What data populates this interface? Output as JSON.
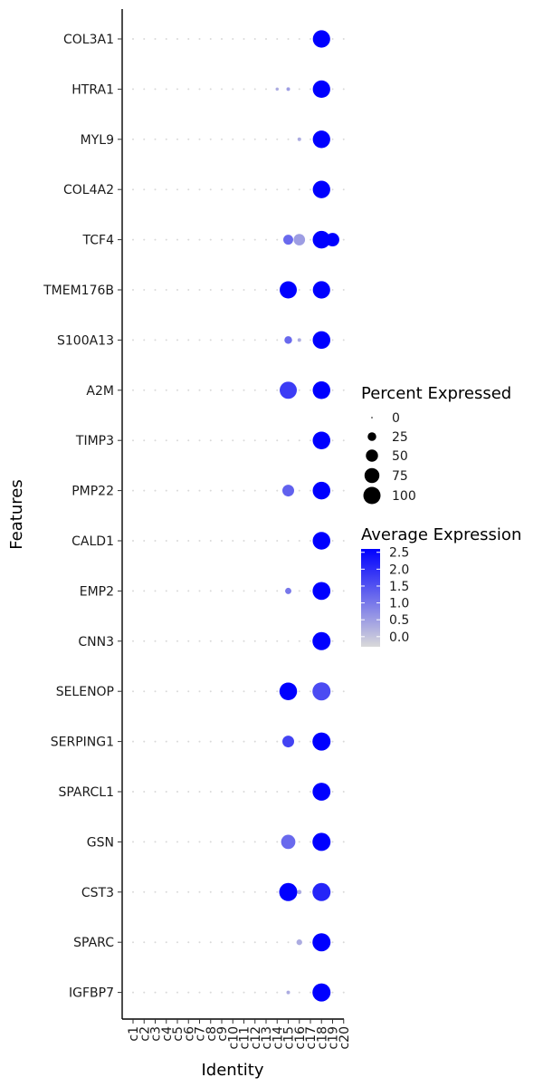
{
  "chart_data": {
    "type": "dotplot",
    "xlabel": "Identity",
    "ylabel": "Features",
    "categories": [
      "c1",
      "c2",
      "c3",
      "c4",
      "c5",
      "c6",
      "c7",
      "c8",
      "c9",
      "c10",
      "c11",
      "c12",
      "c13",
      "c14",
      "c15",
      "c16",
      "c17",
      "c18",
      "c19",
      "c20"
    ],
    "features": [
      "COL3A1",
      "HTRA1",
      "MYL9",
      "COL4A2",
      "TCF4",
      "TMEM176B",
      "S100A13",
      "A2M",
      "TIMP3",
      "PMP22",
      "CALD1",
      "EMP2",
      "CNN3",
      "SELENOP",
      "SERPING1",
      "SPARCL1",
      "GSN",
      "CST3",
      "SPARC",
      "IGFBP7"
    ],
    "size_legend": {
      "title": "Percent Expressed",
      "values": [
        0,
        25,
        50,
        75,
        100
      ]
    },
    "color_legend": {
      "title": "Average Expression",
      "ticks": [
        0.0,
        0.5,
        1.0,
        1.5,
        2.0,
        2.5
      ],
      "tick_labels": [
        "0.0",
        "0.5",
        "1.0",
        "1.5",
        "2.0",
        "2.5"
      ],
      "low_color": "#d9d9d9",
      "high_color": "#0000ff",
      "range": [
        -0.3,
        2.6
      ]
    },
    "default_cell": {
      "pct": 1,
      "avg": -0.3
    },
    "points": [
      {
        "feature": "COL3A1",
        "cluster": "c18",
        "pct": 92,
        "avg": 2.6
      },
      {
        "feature": "HTRA1",
        "cluster": "c14",
        "pct": 3,
        "avg": 0.3
      },
      {
        "feature": "HTRA1",
        "cluster": "c15",
        "pct": 4,
        "avg": 0.5
      },
      {
        "feature": "HTRA1",
        "cluster": "c18",
        "pct": 93,
        "avg": 2.6
      },
      {
        "feature": "MYL9",
        "cluster": "c16",
        "pct": 4,
        "avg": 0.3
      },
      {
        "feature": "MYL9",
        "cluster": "c18",
        "pct": 93,
        "avg": 2.6
      },
      {
        "feature": "COL4A2",
        "cluster": "c18",
        "pct": 93,
        "avg": 2.6
      },
      {
        "feature": "TCF4",
        "cluster": "c15",
        "pct": 30,
        "avg": 1.2
      },
      {
        "feature": "TCF4",
        "cluster": "c16",
        "pct": 40,
        "avg": 0.5
      },
      {
        "feature": "TCF4",
        "cluster": "c18",
        "pct": 95,
        "avg": 2.6
      },
      {
        "feature": "TCF4",
        "cluster": "c19",
        "pct": 55,
        "avg": 2.6
      },
      {
        "feature": "TMEM176B",
        "cluster": "c15",
        "pct": 90,
        "avg": 2.6
      },
      {
        "feature": "TMEM176B",
        "cluster": "c18",
        "pct": 92,
        "avg": 2.6
      },
      {
        "feature": "S100A13",
        "cluster": "c15",
        "pct": 18,
        "avg": 1.2
      },
      {
        "feature": "S100A13",
        "cluster": "c16",
        "pct": 4,
        "avg": 0.3
      },
      {
        "feature": "S100A13",
        "cluster": "c18",
        "pct": 95,
        "avg": 2.6
      },
      {
        "feature": "A2M",
        "cluster": "c15",
        "pct": 90,
        "avg": 1.8
      },
      {
        "feature": "A2M",
        "cluster": "c18",
        "pct": 95,
        "avg": 2.6
      },
      {
        "feature": "TIMP3",
        "cluster": "c18",
        "pct": 95,
        "avg": 2.6
      },
      {
        "feature": "PMP22",
        "cluster": "c15",
        "pct": 42,
        "avg": 1.3
      },
      {
        "feature": "PMP22",
        "cluster": "c18",
        "pct": 95,
        "avg": 2.6
      },
      {
        "feature": "CALD1",
        "cluster": "c18",
        "pct": 95,
        "avg": 2.6
      },
      {
        "feature": "EMP2",
        "cluster": "c15",
        "pct": 12,
        "avg": 1.0
      },
      {
        "feature": "EMP2",
        "cluster": "c18",
        "pct": 97,
        "avg": 2.6
      },
      {
        "feature": "CNN3",
        "cluster": "c18",
        "pct": 100,
        "avg": 2.6
      },
      {
        "feature": "SELENOP",
        "cluster": "c15",
        "pct": 95,
        "avg": 2.6
      },
      {
        "feature": "SELENOP",
        "cluster": "c18",
        "pct": 100,
        "avg": 1.6
      },
      {
        "feature": "SERPING1",
        "cluster": "c15",
        "pct": 42,
        "avg": 1.7
      },
      {
        "feature": "SERPING1",
        "cluster": "c18",
        "pct": 100,
        "avg": 2.6
      },
      {
        "feature": "SPARCL1",
        "cluster": "c18",
        "pct": 98,
        "avg": 2.6
      },
      {
        "feature": "GSN",
        "cluster": "c15",
        "pct": 62,
        "avg": 1.2
      },
      {
        "feature": "GSN",
        "cluster": "c18",
        "pct": 100,
        "avg": 2.6
      },
      {
        "feature": "CST3",
        "cluster": "c15",
        "pct": 100,
        "avg": 2.6
      },
      {
        "feature": "CST3",
        "cluster": "c16",
        "pct": 6,
        "avg": 0.3
      },
      {
        "feature": "CST3",
        "cluster": "c18",
        "pct": 100,
        "avg": 2.1
      },
      {
        "feature": "SPARC",
        "cluster": "c16",
        "pct": 10,
        "avg": 0.3
      },
      {
        "feature": "SPARC",
        "cluster": "c18",
        "pct": 100,
        "avg": 2.6
      },
      {
        "feature": "IGFBP7",
        "cluster": "c15",
        "pct": 4,
        "avg": 0.3
      },
      {
        "feature": "IGFBP7",
        "cluster": "c18",
        "pct": 100,
        "avg": 2.6
      }
    ]
  }
}
